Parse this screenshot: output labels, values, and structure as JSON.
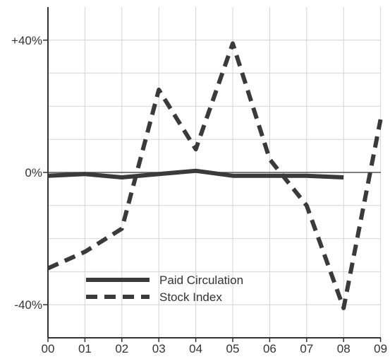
{
  "chart_data": {
    "type": "line",
    "x": [
      "00",
      "01",
      "02",
      "03",
      "04",
      "05",
      "06",
      "07",
      "08",
      "09"
    ],
    "y_ticks": [
      {
        "value": 40,
        "label": "+40%"
      },
      {
        "value": 0,
        "label": "0%"
      },
      {
        "value": -40,
        "label": "-40%"
      }
    ],
    "ylim": [
      -50,
      50
    ],
    "grid": true,
    "legend_position": "lower-left",
    "series": [
      {
        "name": "Paid Circulation",
        "style": "solid",
        "color": "#3a3a3a",
        "points": [
          [
            0,
            -1
          ],
          [
            1,
            -0.5
          ],
          [
            2,
            -1.5
          ],
          [
            3,
            -0.5
          ],
          [
            4,
            0.5
          ],
          [
            5,
            -1
          ],
          [
            6,
            -1
          ],
          [
            7,
            -1
          ],
          [
            8,
            -1.5
          ]
        ]
      },
      {
        "name": "Stock Index",
        "style": "dashed",
        "color": "#3a3a3a",
        "points": [
          [
            0,
            -29
          ],
          [
            1,
            -24
          ],
          [
            2,
            -17
          ],
          [
            3,
            25
          ],
          [
            4,
            7
          ],
          [
            5,
            39
          ],
          [
            6,
            4
          ],
          [
            7,
            -10
          ],
          [
            8,
            -41
          ],
          [
            9,
            16
          ]
        ]
      }
    ]
  }
}
